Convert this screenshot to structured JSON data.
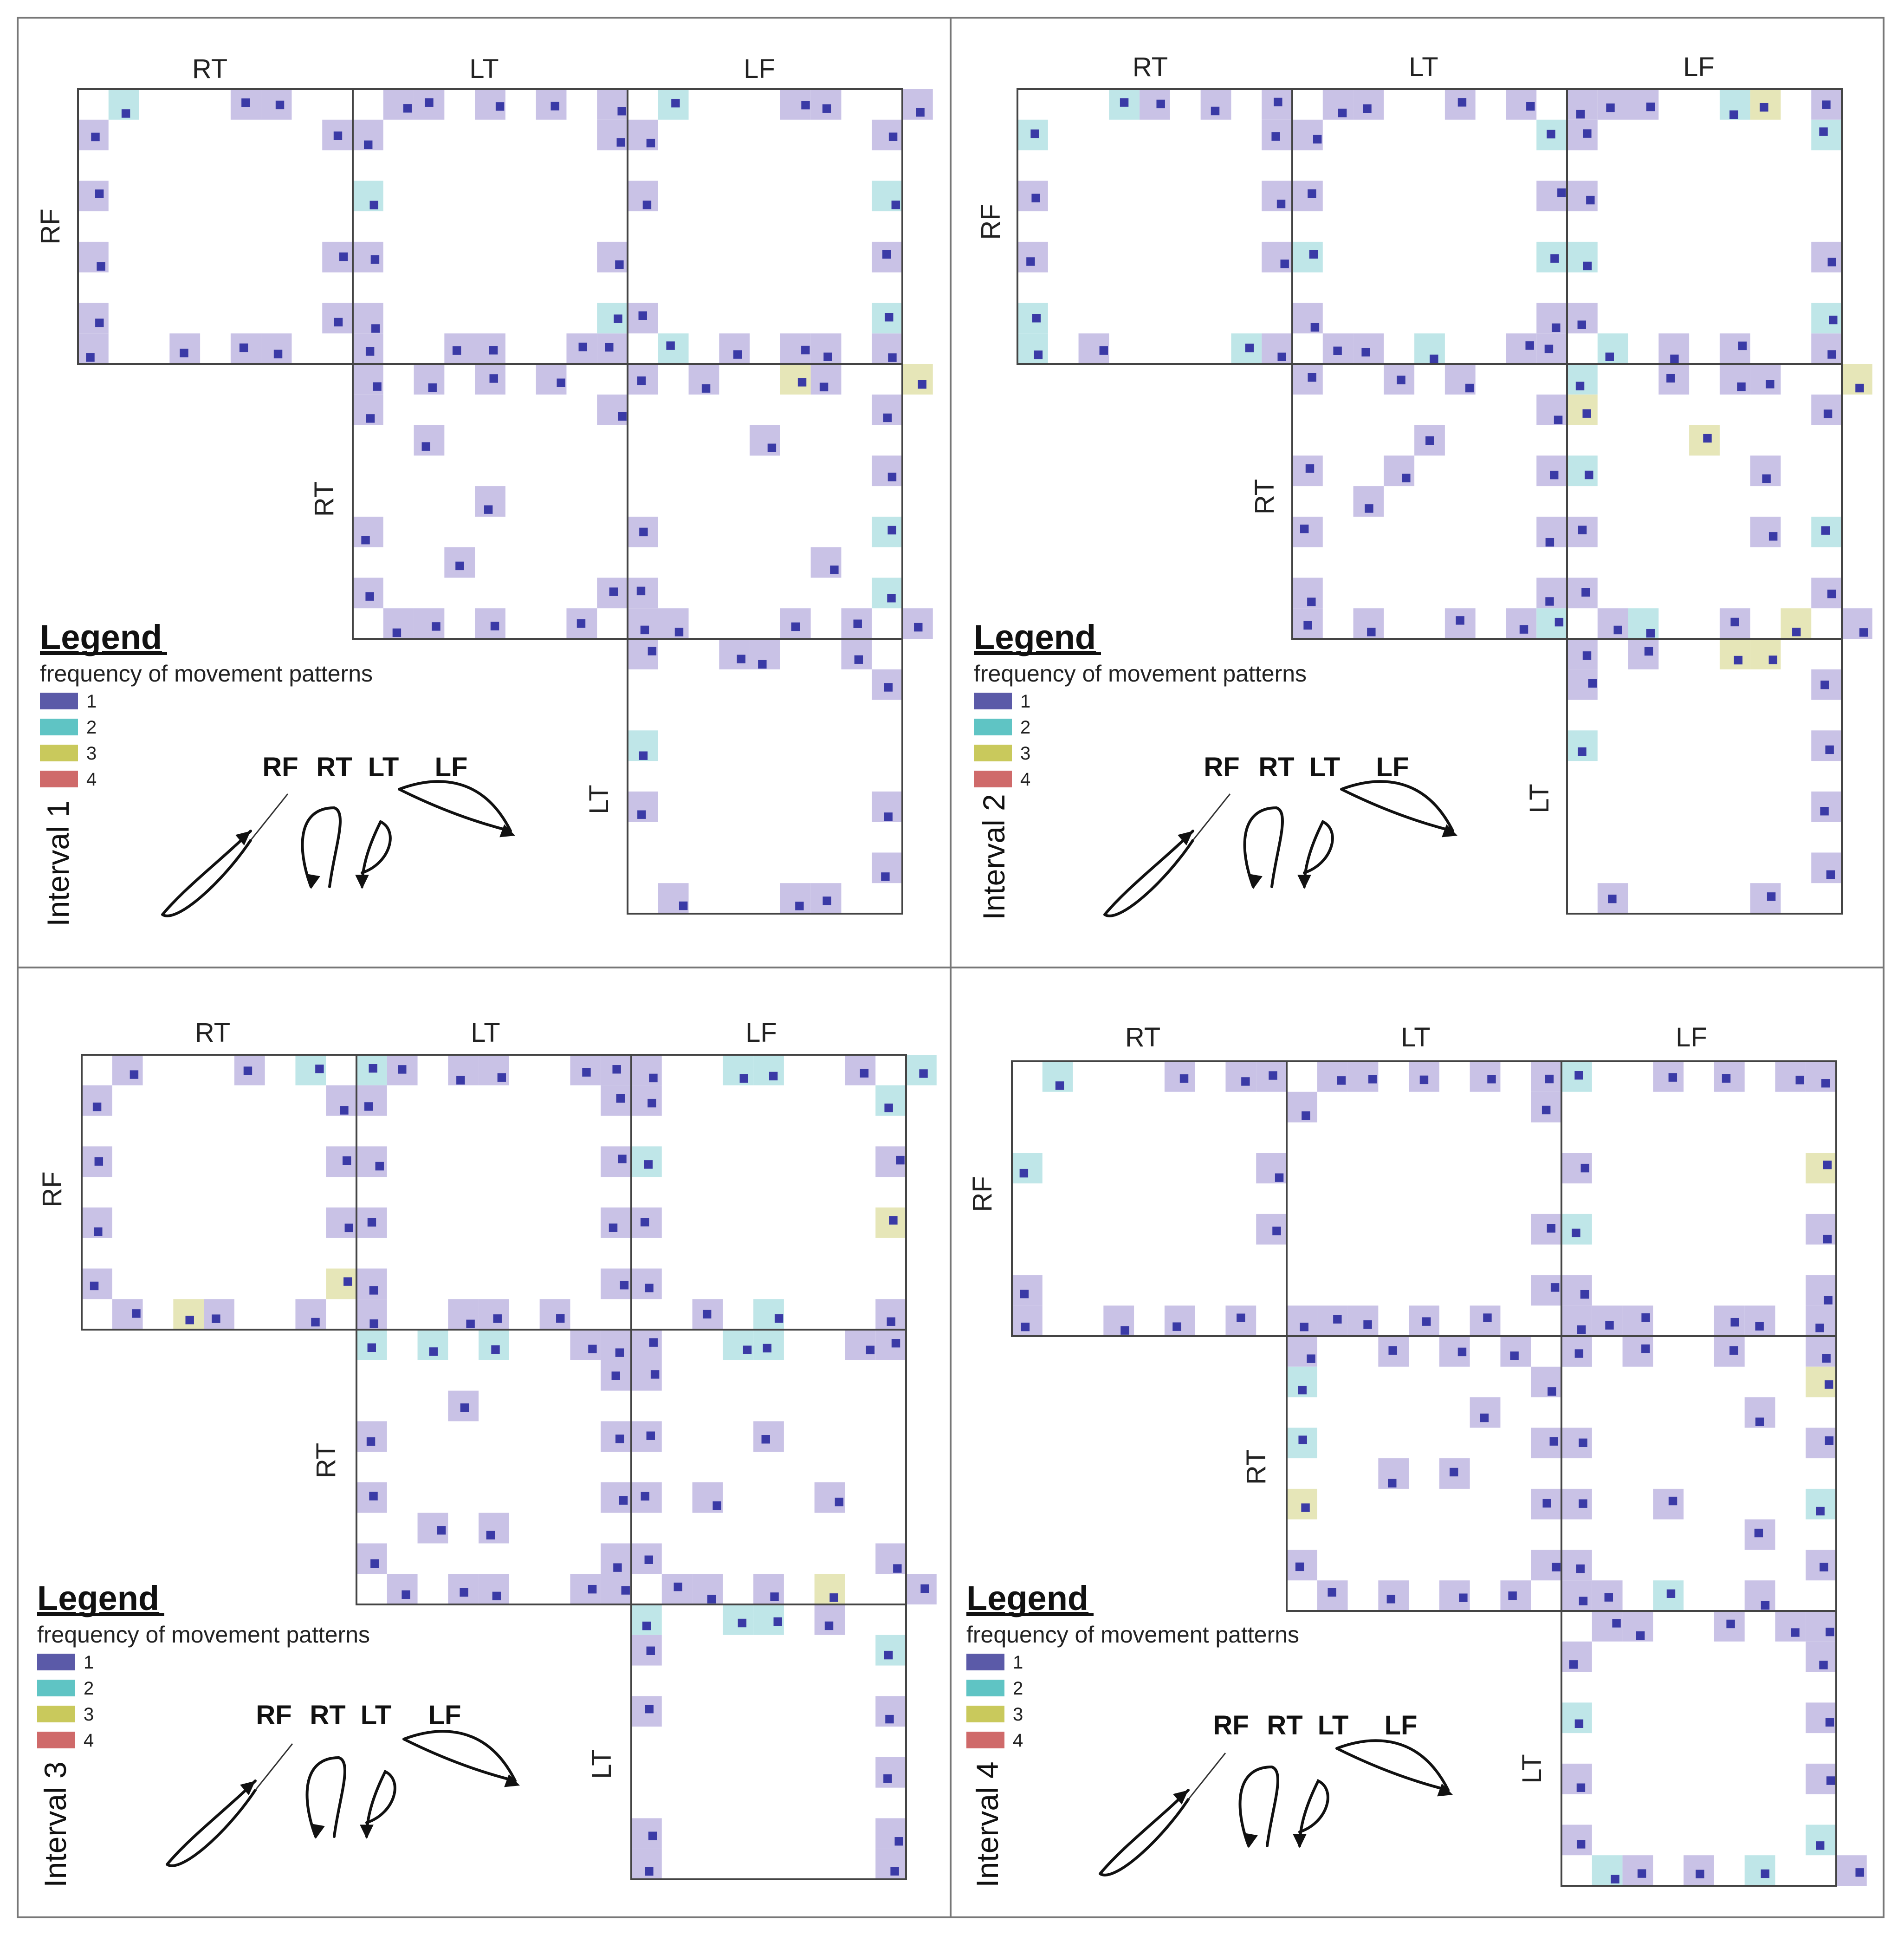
{
  "panels": [
    {
      "interval_label": "Interval 1",
      "column_labels": [
        "RT",
        "LT",
        "LF"
      ],
      "row_labels": [
        "RF",
        "RT",
        "LT"
      ],
      "legend": {
        "title": "Legend",
        "subtitle": "frequency of movement patterns",
        "levels": [
          {
            "value": "1",
            "color": "#5b5aa8"
          },
          {
            "value": "2",
            "color": "#5fc4c4"
          },
          {
            "value": "3",
            "color": "#c9c95c"
          },
          {
            "value": "4",
            "color": "#cf6a6a"
          }
        ]
      },
      "limb_labels": [
        "RF",
        "RT",
        "LT",
        "LF"
      ]
    },
    {
      "interval_label": "Interval 2",
      "column_labels": [
        "RT",
        "LT",
        "LF"
      ],
      "row_labels": [
        "RF",
        "RT",
        "LT"
      ],
      "legend": {
        "title": "Legend",
        "subtitle": "frequency of movement patterns",
        "levels": [
          {
            "value": "1",
            "color": "#5b5aa8"
          },
          {
            "value": "2",
            "color": "#5fc4c4"
          },
          {
            "value": "3",
            "color": "#c9c95c"
          },
          {
            "value": "4",
            "color": "#cf6a6a"
          }
        ]
      },
      "limb_labels": [
        "RF",
        "RT",
        "LT",
        "LF"
      ]
    },
    {
      "interval_label": "Interval 3",
      "column_labels": [
        "RT",
        "LT",
        "LF"
      ],
      "row_labels": [
        "RF",
        "RT",
        "LT"
      ],
      "legend": {
        "title": "Legend",
        "subtitle": "frequency of movement patterns",
        "levels": [
          {
            "value": "1",
            "color": "#5b5aa8"
          },
          {
            "value": "2",
            "color": "#5fc4c4"
          },
          {
            "value": "3",
            "color": "#c9c95c"
          },
          {
            "value": "4",
            "color": "#cf6a6a"
          }
        ]
      },
      "limb_labels": [
        "RF",
        "RT",
        "LT",
        "LF"
      ]
    },
    {
      "interval_label": "Interval 4",
      "column_labels": [
        "RT",
        "LT",
        "LF"
      ],
      "row_labels": [
        "RF",
        "RT",
        "LT"
      ],
      "legend": {
        "title": "Legend",
        "subtitle": "frequency of movement patterns",
        "levels": [
          {
            "value": "1",
            "color": "#5b5aa8"
          },
          {
            "value": "2",
            "color": "#5fc4c4"
          },
          {
            "value": "3",
            "color": "#c9c95c"
          },
          {
            "value": "4",
            "color": "#cf6a6a"
          }
        ]
      },
      "limb_labels": [
        "RF",
        "RT",
        "LT",
        "LF"
      ]
    }
  ],
  "colors": {
    "cell_light": "#c9c2e6",
    "cell_dark": "#3a3aa6",
    "cell_teal": "#bfe6e8",
    "cell_yellow": "#e6e6b8",
    "grid_line": "#444444",
    "divider": "#777777"
  }
}
